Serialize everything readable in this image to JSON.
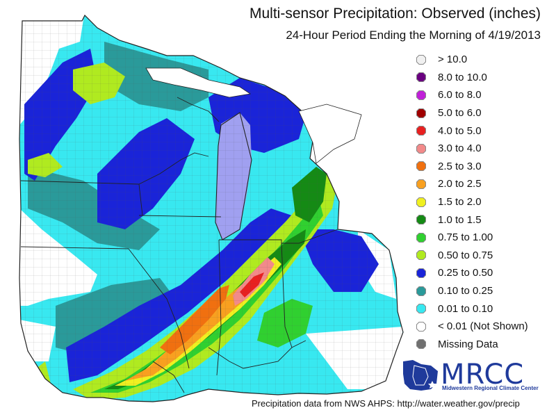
{
  "title": "Multi-sensor Precipitation:  Observed (inches)",
  "subtitle": "24-Hour Period Ending the Morning of 4/19/2013",
  "legend": [
    {
      "label": "> 10.0",
      "color": "#f0f0f0"
    },
    {
      "label": "8.0 to 10.0",
      "color": "#6a0080"
    },
    {
      "label": "6.0 to 8.0",
      "color": "#c020d8"
    },
    {
      "label": "5.0 to 6.0",
      "color": "#a00000"
    },
    {
      "label": "4.0 to 5.0",
      "color": "#e82020"
    },
    {
      "label": "3.0 to 4.0",
      "color": "#f28a8a"
    },
    {
      "label": "2.5 to 3.0",
      "color": "#f07010"
    },
    {
      "label": "2.0 to 2.5",
      "color": "#f8a020"
    },
    {
      "label": "1.5 to 2.0",
      "color": "#f0f020"
    },
    {
      "label": "1.0 to 1.5",
      "color": "#158a15"
    },
    {
      "label": "0.75 to 1.00",
      "color": "#30d030"
    },
    {
      "label": "0.50 to 0.75",
      "color": "#b0ea20"
    },
    {
      "label": "0.25 to 0.50",
      "color": "#1a24d8"
    },
    {
      "label": "0.10 to 0.25",
      "color": "#2a9a9a"
    },
    {
      "label": "0.01 to 0.10",
      "color": "#38e8f0"
    },
    {
      "label": "< 0.01 (Not Shown)",
      "color": "#ffffff"
    },
    {
      "label": "Missing Data",
      "color": "#707070"
    }
  ],
  "logo": {
    "name": "MRCC",
    "tagline": "Midwestern Regional Climate Center"
  },
  "credit": "Precipitation data from NWS AHPS:  http://water.weather.gov/precip"
}
